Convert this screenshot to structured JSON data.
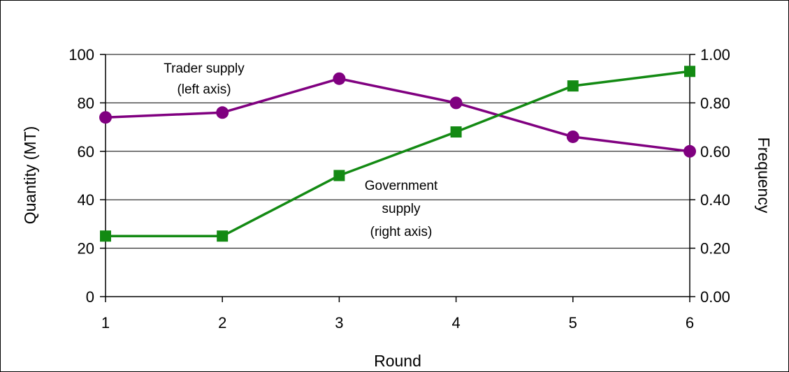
{
  "chart_data": {
    "type": "line",
    "x": [
      1,
      2,
      3,
      4,
      5,
      6
    ],
    "xlabel": "Round",
    "ylabel": "Quantity (MT)",
    "y2label": "Frequency",
    "xlim": [
      1,
      6
    ],
    "ylim": [
      0,
      100
    ],
    "y2lim": [
      0,
      1
    ],
    "x_ticks": [
      "1",
      "2",
      "3",
      "4",
      "5",
      "6"
    ],
    "y_ticks": [
      "0",
      "20",
      "40",
      "60",
      "80",
      "100"
    ],
    "y2_ticks": [
      "0.00",
      "0.20",
      "0.40",
      "0.60",
      "0.80",
      "1.00"
    ],
    "grid": "horizontal",
    "legend": "none",
    "series": [
      {
        "axis": "left",
        "marker": "circle",
        "color": "#800080",
        "values": [
          74,
          76,
          90,
          80,
          66,
          60
        ]
      },
      {
        "axis": "right",
        "marker": "square",
        "color": "#138a13",
        "values": [
          0.25,
          0.25,
          0.5,
          0.68,
          0.87,
          0.93
        ]
      }
    ],
    "annotations": {
      "trader": [
        "Trader supply",
        "(left axis)"
      ],
      "government": [
        "Government",
        "supply",
        "(right axis)"
      ]
    }
  }
}
